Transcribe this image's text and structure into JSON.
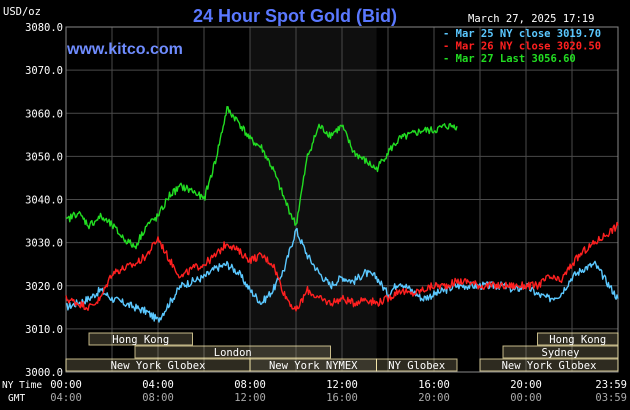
{
  "chart_data": {
    "type": "line",
    "title": "24 Hour Spot Gold (Bid)",
    "ylabel": "USD/oz",
    "timestamp": "March 27, 2025 17:19",
    "watermark": "www.kitco.com",
    "ylim": [
      3000,
      3080
    ],
    "yticks": [
      "3000.0",
      "3010.0",
      "3020.0",
      "3030.0",
      "3040.0",
      "3050.0",
      "3060.0",
      "3070.0",
      "3080.0"
    ],
    "xlim": [
      0,
      24
    ],
    "row_label_ny": "NY Time",
    "row_label_gmt": "GMT",
    "xticks_ny": [
      "00:00",
      "04:00",
      "08:00",
      "12:00",
      "16:00",
      "20:00",
      "23:59"
    ],
    "xticks_gmt": [
      "04:00",
      "08:00",
      "12:00",
      "16:00",
      "20:00",
      "00:00",
      "03:59"
    ],
    "shaded_session": [
      8,
      13.5
    ],
    "colors": {
      "background": "#000000",
      "grid": "#4a4a4a",
      "title": "#5a78ff",
      "watermark": "#6f8cff",
      "axis_text": "#ffffff",
      "session_fill": "#fff0b0",
      "mar25": "#5bc8ff",
      "mar26": "#ff2020",
      "mar27": "#22dd22"
    },
    "sessions": [
      {
        "name": "Hong Kong",
        "start": 1,
        "end": 5.5,
        "row": 0
      },
      {
        "name": "Hong Kong",
        "start": 20.5,
        "end": 24,
        "row": 0
      },
      {
        "name": "London",
        "start": 3,
        "end": 11.5,
        "row": 1
      },
      {
        "name": "Sydney",
        "start": 19,
        "end": 24,
        "row": 1
      },
      {
        "name": "New York Globex",
        "start": 0,
        "end": 8,
        "row": 2
      },
      {
        "name": "New York NYMEX",
        "start": 8,
        "end": 13.5,
        "row": 2
      },
      {
        "name": "NY Globex",
        "start": 13.5,
        "end": 17,
        "row": 2
      },
      {
        "name": "New York Globex",
        "start": 18,
        "end": 24,
        "row": 2
      }
    ],
    "series": [
      {
        "name": "Mar 25 NY close 3019.70",
        "color_key": "mar25",
        "x": [
          0,
          0.5,
          1,
          1.5,
          2,
          2.5,
          3,
          3.5,
          4,
          4.5,
          5,
          5.5,
          6,
          6.5,
          7,
          7.5,
          8,
          8.5,
          9,
          9.5,
          10,
          10.5,
          11,
          11.5,
          12,
          12.5,
          13,
          13.5,
          14,
          14.5,
          15,
          15.5,
          16,
          16.5,
          17,
          17.5,
          18,
          18.5,
          19,
          19.5,
          20,
          20.5,
          21,
          21.5,
          22,
          22.5,
          23,
          23.5,
          24
        ],
        "values": [
          3015,
          3016,
          3017,
          3019,
          3017,
          3016,
          3015,
          3014,
          3012,
          3016,
          3020,
          3021,
          3022,
          3024,
          3025,
          3023,
          3019,
          3016,
          3019,
          3024,
          3033,
          3027,
          3023,
          3020,
          3022,
          3021,
          3023,
          3022,
          3018,
          3021,
          3019,
          3017,
          3018,
          3019,
          3020,
          3020,
          3020,
          3020,
          3020,
          3019,
          3020,
          3018,
          3017,
          3018,
          3022,
          3024,
          3025,
          3021,
          3017
        ]
      },
      {
        "name": "Mar 26 NY close 3020.50",
        "color_key": "mar26",
        "x": [
          0,
          0.5,
          1,
          1.5,
          2,
          2.5,
          3,
          3.5,
          4,
          4.5,
          5,
          5.5,
          6,
          6.5,
          7,
          7.5,
          8,
          8.5,
          9,
          9.5,
          10,
          10.5,
          11,
          11.5,
          12,
          12.5,
          13,
          13.5,
          14,
          14.5,
          15,
          15.5,
          16,
          16.5,
          17,
          17.5,
          18,
          18.5,
          19,
          19.5,
          20,
          20.5,
          21,
          21.5,
          22,
          22.5,
          23,
          23.5,
          24
        ],
        "values": [
          3017,
          3016,
          3015,
          3017,
          3023,
          3024,
          3025,
          3027,
          3031,
          3026,
          3022,
          3024,
          3025,
          3027,
          3030,
          3028,
          3026,
          3027,
          3025,
          3018,
          3014,
          3019,
          3017,
          3016,
          3017,
          3016,
          3017,
          3016,
          3017,
          3019,
          3018,
          3019,
          3020,
          3020,
          3021,
          3021,
          3020,
          3020,
          3020,
          3020,
          3020,
          3020,
          3022,
          3021,
          3025,
          3028,
          3030,
          3032,
          3034
        ]
      },
      {
        "name": "Mar 27 Last 3056.60",
        "color_key": "mar27",
        "x": [
          0,
          0.5,
          1,
          1.5,
          2,
          2.5,
          3,
          3.5,
          4,
          4.5,
          5,
          5.5,
          6,
          6.5,
          7,
          7.5,
          8,
          8.5,
          9,
          9.5,
          10,
          10.5,
          11,
          11.5,
          12,
          12.5,
          13,
          13.5,
          14,
          14.5,
          15,
          15.5,
          16,
          16.5,
          17
        ],
        "values": [
          3035,
          3037,
          3034,
          3036,
          3034,
          3031,
          3029,
          3034,
          3036,
          3041,
          3043,
          3042,
          3040,
          3049,
          3061,
          3058,
          3054,
          3052,
          3047,
          3040,
          3034,
          3050,
          3057,
          3055,
          3057,
          3051,
          3049,
          3047,
          3051,
          3054,
          3055,
          3056,
          3056,
          3057,
          3057
        ]
      }
    ]
  }
}
